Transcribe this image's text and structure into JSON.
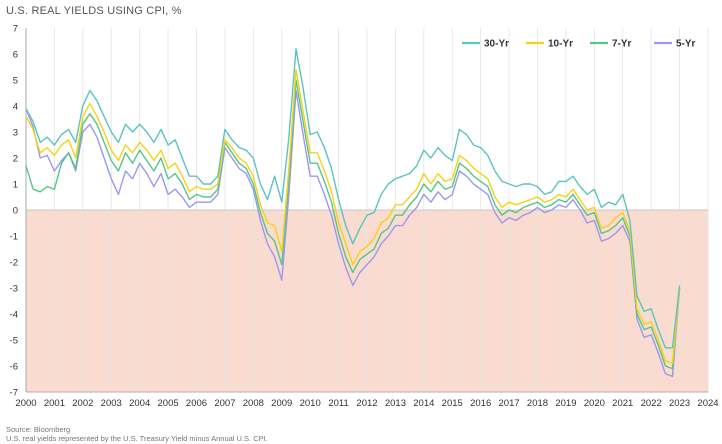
{
  "chart_data": {
    "type": "line",
    "title": "U.S. REAL YIELDS USING CPI, %",
    "xlabel": "",
    "ylabel": "",
    "xlim": [
      2000,
      2024
    ],
    "ylim": [
      -7,
      7
    ],
    "x_ticks": [
      "2000",
      "2001",
      "2002",
      "2003",
      "2004",
      "2005",
      "2006",
      "2007",
      "2008",
      "2009",
      "2010",
      "2011",
      "2012",
      "2013",
      "2014",
      "2015",
      "2016",
      "2017",
      "2018",
      "2019",
      "2020",
      "2021",
      "2022",
      "2023",
      "2024"
    ],
    "y_ticks": [
      "7",
      "6",
      "5",
      "4",
      "3",
      "2",
      "1",
      "0",
      "-1",
      "-2",
      "-3",
      "-4",
      "-5",
      "-6",
      "-7"
    ],
    "negative_region_color": "#fadbd0",
    "grid": "vertical",
    "legend_position": "top-right",
    "series": [
      {
        "name": "30-Yr",
        "color": "#5bc4bf",
        "x": [
          2000.0,
          2000.25,
          2000.5,
          2000.75,
          2001.0,
          2001.25,
          2001.5,
          2001.75,
          2002.0,
          2002.25,
          2002.5,
          2002.75,
          2003.0,
          2003.25,
          2003.5,
          2003.75,
          2004.0,
          2004.25,
          2004.5,
          2004.75,
          2005.0,
          2005.25,
          2005.5,
          2005.75,
          2006.0,
          2006.25,
          2006.5,
          2006.75,
          2007.0,
          2007.25,
          2007.5,
          2007.75,
          2008.0,
          2008.25,
          2008.5,
          2008.75,
          2009.0,
          2009.25,
          2009.5,
          2009.75,
          2010.0,
          2010.25,
          2010.5,
          2010.75,
          2011.0,
          2011.25,
          2011.5,
          2011.75,
          2012.0,
          2012.25,
          2012.5,
          2012.75,
          2013.0,
          2013.25,
          2013.5,
          2013.75,
          2014.0,
          2014.25,
          2014.5,
          2014.75,
          2015.0,
          2015.25,
          2015.5,
          2015.75,
          2016.0,
          2016.25,
          2016.5,
          2016.75,
          2017.0,
          2017.25,
          2017.5,
          2017.75,
          2018.0,
          2018.25,
          2018.5,
          2018.75,
          2019.0,
          2019.25,
          2019.5,
          2019.75,
          2020.0,
          2020.25,
          2020.5,
          2020.75,
          2021.0,
          2021.25,
          2021.5,
          2021.75,
          2022.0,
          2022.25,
          2022.5,
          2022.75,
          2023.0
        ],
        "y": [
          3.9,
          3.4,
          2.6,
          2.8,
          2.5,
          2.9,
          3.1,
          2.6,
          4.0,
          4.6,
          4.2,
          3.6,
          3.0,
          2.6,
          3.3,
          3.0,
          3.3,
          3.0,
          2.6,
          3.1,
          2.5,
          2.7,
          2.0,
          1.3,
          1.3,
          1.0,
          1.0,
          1.3,
          3.1,
          2.7,
          2.4,
          2.3,
          2.0,
          1.0,
          0.4,
          1.3,
          0.3,
          2.8,
          6.2,
          4.7,
          2.9,
          3.0,
          2.4,
          1.6,
          0.4,
          -0.6,
          -1.3,
          -0.7,
          -0.2,
          -0.1,
          0.6,
          1.0,
          1.2,
          1.3,
          1.4,
          1.7,
          2.3,
          2.0,
          2.4,
          2.1,
          1.9,
          3.1,
          2.9,
          2.5,
          2.4,
          2.1,
          1.5,
          1.1,
          1.0,
          0.9,
          1.0,
          1.0,
          0.9,
          0.6,
          0.7,
          1.1,
          1.1,
          1.3,
          0.9,
          0.6,
          0.8,
          0.1,
          0.3,
          0.2,
          0.6,
          -0.4,
          -3.3,
          -3.9,
          -3.8,
          -4.6,
          -5.3,
          -5.3,
          -2.9
        ]
      },
      {
        "name": "10-Yr",
        "color": "#f6d215",
        "x": [
          2000.0,
          2000.25,
          2000.5,
          2000.75,
          2001.0,
          2001.25,
          2001.5,
          2001.75,
          2002.0,
          2002.25,
          2002.5,
          2002.75,
          2003.0,
          2003.25,
          2003.5,
          2003.75,
          2004.0,
          2004.25,
          2004.5,
          2004.75,
          2005.0,
          2005.25,
          2005.5,
          2005.75,
          2006.0,
          2006.25,
          2006.5,
          2006.75,
          2007.0,
          2007.25,
          2007.5,
          2007.75,
          2008.0,
          2008.25,
          2008.5,
          2008.75,
          2009.0,
          2009.25,
          2009.5,
          2009.75,
          2010.0,
          2010.25,
          2010.5,
          2010.75,
          2011.0,
          2011.25,
          2011.5,
          2011.75,
          2012.0,
          2012.25,
          2012.5,
          2012.75,
          2013.0,
          2013.25,
          2013.5,
          2013.75,
          2014.0,
          2014.25,
          2014.5,
          2014.75,
          2015.0,
          2015.25,
          2015.5,
          2015.75,
          2016.0,
          2016.25,
          2016.5,
          2016.75,
          2017.0,
          2017.25,
          2017.5,
          2017.75,
          2018.0,
          2018.25,
          2018.5,
          2018.75,
          2019.0,
          2019.25,
          2019.5,
          2019.75,
          2020.0,
          2020.25,
          2020.5,
          2020.75,
          2021.0,
          2021.25,
          2021.5,
          2021.75,
          2022.0,
          2022.25,
          2022.5,
          2022.75,
          2023.0
        ],
        "y": [
          3.6,
          3.1,
          2.2,
          2.4,
          2.1,
          2.5,
          2.7,
          2.0,
          3.6,
          4.1,
          3.6,
          3.0,
          2.3,
          1.9,
          2.5,
          2.2,
          2.6,
          2.3,
          1.9,
          2.3,
          1.6,
          1.8,
          1.3,
          0.7,
          0.9,
          0.8,
          0.8,
          1.0,
          2.7,
          2.4,
          2.0,
          1.8,
          1.3,
          0.2,
          -0.5,
          -0.6,
          -1.6,
          1.6,
          5.4,
          3.8,
          2.2,
          2.2,
          1.5,
          0.7,
          -0.5,
          -1.3,
          -2.1,
          -1.6,
          -1.4,
          -1.1,
          -0.5,
          -0.3,
          0.2,
          0.2,
          0.5,
          0.8,
          1.4,
          1.0,
          1.4,
          1.1,
          1.2,
          2.1,
          1.9,
          1.6,
          1.4,
          1.2,
          0.5,
          0.1,
          0.3,
          0.2,
          0.3,
          0.4,
          0.5,
          0.3,
          0.4,
          0.6,
          0.5,
          0.8,
          0.4,
          0.0,
          0.1,
          -0.7,
          -0.6,
          -0.3,
          -0.1,
          -0.8,
          -3.8,
          -4.4,
          -4.3,
          -5.0,
          -5.8,
          -5.9,
          -3.0
        ]
      },
      {
        "name": "7-Yr",
        "color": "#56c58a",
        "x": [
          2000.0,
          2000.25,
          2000.5,
          2000.75,
          2001.0,
          2001.25,
          2001.5,
          2001.75,
          2002.0,
          2002.25,
          2002.5,
          2002.75,
          2003.0,
          2003.25,
          2003.5,
          2003.75,
          2004.0,
          2004.25,
          2004.5,
          2004.75,
          2005.0,
          2005.25,
          2005.5,
          2005.75,
          2006.0,
          2006.25,
          2006.5,
          2006.75,
          2007.0,
          2007.25,
          2007.5,
          2007.75,
          2008.0,
          2008.25,
          2008.5,
          2008.75,
          2009.0,
          2009.25,
          2009.5,
          2009.75,
          2010.0,
          2010.25,
          2010.5,
          2010.75,
          2011.0,
          2011.25,
          2011.5,
          2011.75,
          2012.0,
          2012.25,
          2012.5,
          2012.75,
          2013.0,
          2013.25,
          2013.5,
          2013.75,
          2014.0,
          2014.25,
          2014.5,
          2014.75,
          2015.0,
          2015.25,
          2015.5,
          2015.75,
          2016.0,
          2016.25,
          2016.5,
          2016.75,
          2017.0,
          2017.25,
          2017.5,
          2017.75,
          2018.0,
          2018.25,
          2018.5,
          2018.75,
          2019.0,
          2019.25,
          2019.5,
          2019.75,
          2020.0,
          2020.25,
          2020.5,
          2020.75,
          2021.0,
          2021.25,
          2021.5,
          2021.75,
          2022.0,
          2022.25,
          2022.5,
          2022.75,
          2023.0
        ],
        "y": [
          1.7,
          0.8,
          0.7,
          0.9,
          0.8,
          1.8,
          2.2,
          1.6,
          3.3,
          3.7,
          3.3,
          2.6,
          1.9,
          1.5,
          2.2,
          1.8,
          2.3,
          1.9,
          1.5,
          2.0,
          1.2,
          1.4,
          1.0,
          0.4,
          0.6,
          0.5,
          0.5,
          0.8,
          2.6,
          2.2,
          1.8,
          1.6,
          1.0,
          -0.1,
          -0.9,
          -1.2,
          -2.1,
          1.2,
          5.0,
          3.4,
          1.8,
          1.8,
          1.1,
          0.3,
          -0.9,
          -1.8,
          -2.4,
          -1.9,
          -1.7,
          -1.5,
          -0.9,
          -0.7,
          -0.2,
          -0.2,
          0.2,
          0.5,
          1.0,
          0.7,
          1.1,
          0.8,
          0.9,
          1.8,
          1.6,
          1.3,
          1.1,
          0.9,
          0.2,
          -0.2,
          0.0,
          -0.1,
          0.1,
          0.2,
          0.3,
          0.1,
          0.2,
          0.4,
          0.3,
          0.6,
          0.2,
          -0.2,
          -0.1,
          -0.9,
          -0.8,
          -0.6,
          -0.3,
          -1.0,
          -4.0,
          -4.6,
          -4.5,
          -5.2,
          -6.0,
          -6.1,
          -3.0
        ]
      },
      {
        "name": "5-Yr",
        "color": "#9d97ee",
        "x": [
          2000.0,
          2000.25,
          2000.5,
          2000.75,
          2001.0,
          2001.25,
          2001.5,
          2001.75,
          2002.0,
          2002.25,
          2002.5,
          2002.75,
          2003.0,
          2003.25,
          2003.5,
          2003.75,
          2004.0,
          2004.25,
          2004.5,
          2004.75,
          2005.0,
          2005.25,
          2005.5,
          2005.75,
          2006.0,
          2006.25,
          2006.5,
          2006.75,
          2007.0,
          2007.25,
          2007.5,
          2007.75,
          2008.0,
          2008.25,
          2008.5,
          2008.75,
          2009.0,
          2009.25,
          2009.5,
          2009.75,
          2010.0,
          2010.25,
          2010.5,
          2010.75,
          2011.0,
          2011.25,
          2011.5,
          2011.75,
          2012.0,
          2012.25,
          2012.5,
          2012.75,
          2013.0,
          2013.25,
          2013.5,
          2013.75,
          2014.0,
          2014.25,
          2014.5,
          2014.75,
          2015.0,
          2015.25,
          2015.5,
          2015.75,
          2016.0,
          2016.25,
          2016.5,
          2016.75,
          2017.0,
          2017.25,
          2017.5,
          2017.75,
          2018.0,
          2018.25,
          2018.5,
          2018.75,
          2019.0,
          2019.25,
          2019.5,
          2019.75,
          2020.0,
          2020.25,
          2020.5,
          2020.75,
          2021.0,
          2021.25,
          2021.5,
          2021.75,
          2022.0,
          2022.25,
          2022.5,
          2022.75,
          2023.0
        ],
        "y": [
          3.9,
          3.2,
          2.0,
          2.1,
          1.5,
          1.9,
          2.2,
          1.5,
          3.0,
          3.3,
          2.8,
          2.0,
          1.2,
          0.6,
          1.5,
          1.2,
          1.8,
          1.4,
          0.9,
          1.4,
          0.6,
          0.8,
          0.5,
          0.1,
          0.3,
          0.3,
          0.3,
          0.6,
          2.4,
          2.0,
          1.6,
          1.4,
          0.8,
          -0.4,
          -1.3,
          -1.8,
          -2.7,
          0.6,
          4.6,
          2.9,
          1.3,
          1.3,
          0.6,
          -0.2,
          -1.3,
          -2.2,
          -2.9,
          -2.4,
          -2.1,
          -1.8,
          -1.3,
          -1.0,
          -0.6,
          -0.6,
          -0.2,
          0.1,
          0.6,
          0.3,
          0.7,
          0.4,
          0.6,
          1.5,
          1.3,
          1.0,
          0.8,
          0.6,
          -0.1,
          -0.5,
          -0.3,
          -0.4,
          -0.2,
          -0.1,
          0.1,
          -0.1,
          0.0,
          0.2,
          0.1,
          0.4,
          0.0,
          -0.5,
          -0.4,
          -1.2,
          -1.1,
          -0.9,
          -0.6,
          -1.2,
          -4.2,
          -4.9,
          -4.8,
          -5.5,
          -6.3,
          -6.4,
          -3.0
        ]
      }
    ]
  },
  "notes": {
    "source": "Source: Bloomberg",
    "description": "U.S. real yields represented by the U.S. Treasury Yield minus Annual U.S. CPI."
  }
}
